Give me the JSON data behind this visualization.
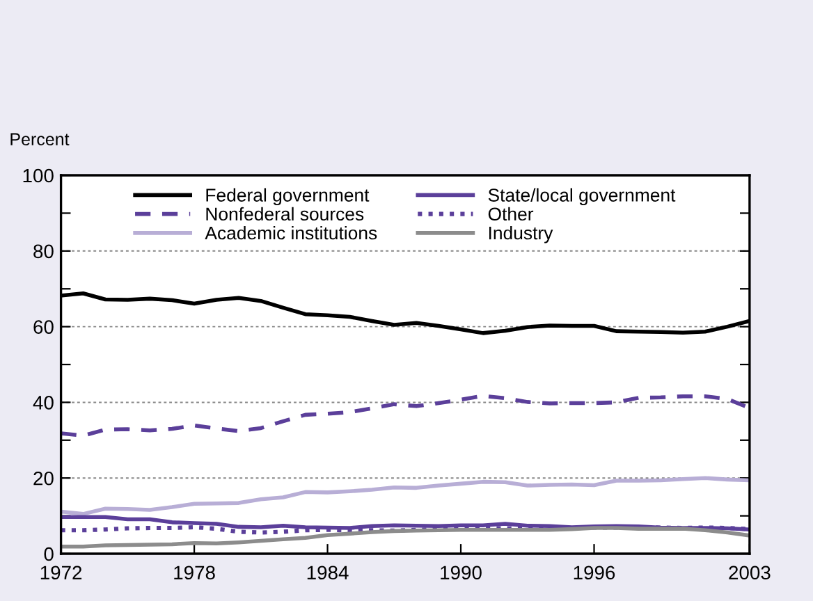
{
  "chart_data": {
    "type": "line",
    "ylabel": "Percent",
    "x": [
      1972,
      1973,
      1974,
      1975,
      1976,
      1977,
      1978,
      1979,
      1980,
      1981,
      1982,
      1983,
      1984,
      1985,
      1986,
      1987,
      1988,
      1989,
      1990,
      1991,
      1992,
      1993,
      1994,
      1995,
      1996,
      1997,
      1998,
      1999,
      2000,
      2001,
      2002,
      2003
    ],
    "series": [
      {
        "name": "Federal government",
        "color": "#000000",
        "line_style": "solid",
        "values": [
          68.2,
          68.8,
          67.2,
          67.1,
          67.4,
          67.0,
          66.1,
          67.1,
          67.6,
          66.8,
          65.0,
          63.3,
          63.0,
          62.6,
          61.5,
          60.5,
          61.0,
          60.2,
          59.3,
          58.3,
          58.9,
          59.9,
          60.3,
          60.2,
          60.2,
          58.8,
          58.7,
          58.6,
          58.4,
          58.7,
          60.0,
          61.5
        ]
      },
      {
        "name": "Nonfederal sources",
        "color": "#5b3f9a",
        "line_style": "dashed",
        "values": [
          31.8,
          31.2,
          32.8,
          32.9,
          32.6,
          33.0,
          33.9,
          33.1,
          32.4,
          33.2,
          35.0,
          36.7,
          37.0,
          37.4,
          38.4,
          39.5,
          39.0,
          39.8,
          40.7,
          41.7,
          41.1,
          40.1,
          39.7,
          39.8,
          39.8,
          40.0,
          41.2,
          41.3,
          41.6,
          41.6,
          40.9,
          38.5
        ]
      },
      {
        "name": "Academic institutions",
        "color": "#b8aed6",
        "line_style": "solid",
        "values": [
          11.1,
          10.5,
          11.9,
          11.8,
          11.6,
          12.3,
          13.2,
          13.3,
          13.4,
          14.4,
          14.9,
          16.3,
          16.2,
          16.5,
          16.9,
          17.5,
          17.4,
          18.0,
          18.5,
          19.0,
          18.9,
          18.0,
          18.2,
          18.3,
          18.1,
          19.3,
          19.3,
          19.4,
          19.7,
          20.0,
          19.6,
          19.4
        ]
      },
      {
        "name": "State/local government",
        "color": "#5b3f9a",
        "line_style": "solid",
        "values": [
          9.7,
          9.7,
          9.7,
          9.1,
          9.1,
          8.3,
          8.1,
          7.9,
          7.1,
          7.0,
          7.4,
          7.0,
          6.9,
          6.8,
          7.3,
          7.5,
          7.4,
          7.3,
          7.5,
          7.5,
          7.9,
          7.4,
          7.3,
          7.0,
          7.2,
          7.3,
          7.2,
          6.9,
          6.8,
          6.8,
          6.7,
          6.4
        ]
      },
      {
        "name": "Other",
        "color": "#5b3f9a",
        "line_style": "dotted",
        "values": [
          6.2,
          6.2,
          6.4,
          6.7,
          6.8,
          6.8,
          7.0,
          6.6,
          5.8,
          5.6,
          5.8,
          6.2,
          6.3,
          6.2,
          6.2,
          6.1,
          6.3,
          6.5,
          6.6,
          6.7,
          6.7,
          6.6,
          6.6,
          6.8,
          6.9,
          6.9,
          7.0,
          6.9,
          6.8,
          6.9,
          6.8,
          6.5
        ]
      },
      {
        "name": "Industry",
        "color": "#8c8c8c",
        "line_style": "solid",
        "values": [
          1.9,
          1.9,
          2.2,
          2.3,
          2.4,
          2.5,
          2.8,
          2.7,
          3.0,
          3.4,
          3.8,
          4.2,
          4.9,
          5.3,
          5.7,
          6.0,
          6.1,
          6.2,
          6.3,
          6.3,
          6.3,
          6.3,
          6.3,
          6.5,
          6.8,
          6.8,
          6.6,
          6.6,
          6.6,
          6.2,
          5.6,
          4.8
        ]
      }
    ],
    "xlim": [
      1972,
      2003
    ],
    "xticks": [
      1972,
      1978,
      1984,
      1990,
      1996,
      2003
    ],
    "ylim": [
      0,
      100
    ],
    "yticks": [
      0,
      {
        "value": 10,
        "label": null
      },
      20,
      {
        "value": 30,
        "label": null
      },
      40,
      {
        "value": 50,
        "label": null
      },
      60,
      {
        "value": 70,
        "label": null
      },
      80,
      {
        "value": 90,
        "label": null
      },
      100
    ],
    "grid": "y",
    "legend": "top",
    "marker": "none"
  }
}
